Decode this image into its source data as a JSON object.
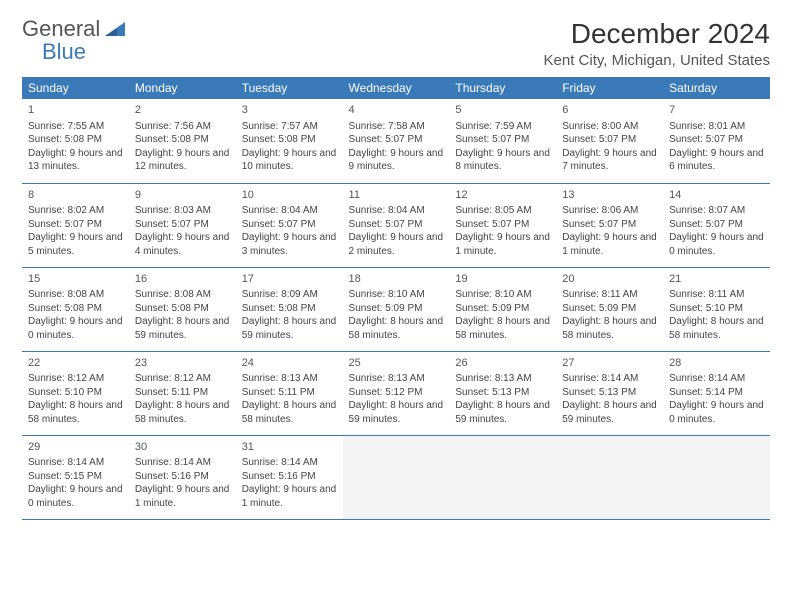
{
  "logo": {
    "word1": "General",
    "word2": "Blue"
  },
  "title": "December 2024",
  "location": "Kent City, Michigan, United States",
  "colors": {
    "header_bg": "#3a7ab8",
    "border": "#3a7ab8",
    "empty_bg": "#f3f3f3"
  },
  "weekdays": [
    "Sunday",
    "Monday",
    "Tuesday",
    "Wednesday",
    "Thursday",
    "Friday",
    "Saturday"
  ],
  "days": [
    {
      "n": "1",
      "sr": "7:55 AM",
      "ss": "5:08 PM",
      "dl": "9 hours and 13 minutes."
    },
    {
      "n": "2",
      "sr": "7:56 AM",
      "ss": "5:08 PM",
      "dl": "9 hours and 12 minutes."
    },
    {
      "n": "3",
      "sr": "7:57 AM",
      "ss": "5:08 PM",
      "dl": "9 hours and 10 minutes."
    },
    {
      "n": "4",
      "sr": "7:58 AM",
      "ss": "5:07 PM",
      "dl": "9 hours and 9 minutes."
    },
    {
      "n": "5",
      "sr": "7:59 AM",
      "ss": "5:07 PM",
      "dl": "9 hours and 8 minutes."
    },
    {
      "n": "6",
      "sr": "8:00 AM",
      "ss": "5:07 PM",
      "dl": "9 hours and 7 minutes."
    },
    {
      "n": "7",
      "sr": "8:01 AM",
      "ss": "5:07 PM",
      "dl": "9 hours and 6 minutes."
    },
    {
      "n": "8",
      "sr": "8:02 AM",
      "ss": "5:07 PM",
      "dl": "9 hours and 5 minutes."
    },
    {
      "n": "9",
      "sr": "8:03 AM",
      "ss": "5:07 PM",
      "dl": "9 hours and 4 minutes."
    },
    {
      "n": "10",
      "sr": "8:04 AM",
      "ss": "5:07 PM",
      "dl": "9 hours and 3 minutes."
    },
    {
      "n": "11",
      "sr": "8:04 AM",
      "ss": "5:07 PM",
      "dl": "9 hours and 2 minutes."
    },
    {
      "n": "12",
      "sr": "8:05 AM",
      "ss": "5:07 PM",
      "dl": "9 hours and 1 minute."
    },
    {
      "n": "13",
      "sr": "8:06 AM",
      "ss": "5:07 PM",
      "dl": "9 hours and 1 minute."
    },
    {
      "n": "14",
      "sr": "8:07 AM",
      "ss": "5:07 PM",
      "dl": "9 hours and 0 minutes."
    },
    {
      "n": "15",
      "sr": "8:08 AM",
      "ss": "5:08 PM",
      "dl": "9 hours and 0 minutes."
    },
    {
      "n": "16",
      "sr": "8:08 AM",
      "ss": "5:08 PM",
      "dl": "8 hours and 59 minutes."
    },
    {
      "n": "17",
      "sr": "8:09 AM",
      "ss": "5:08 PM",
      "dl": "8 hours and 59 minutes."
    },
    {
      "n": "18",
      "sr": "8:10 AM",
      "ss": "5:09 PM",
      "dl": "8 hours and 58 minutes."
    },
    {
      "n": "19",
      "sr": "8:10 AM",
      "ss": "5:09 PM",
      "dl": "8 hours and 58 minutes."
    },
    {
      "n": "20",
      "sr": "8:11 AM",
      "ss": "5:09 PM",
      "dl": "8 hours and 58 minutes."
    },
    {
      "n": "21",
      "sr": "8:11 AM",
      "ss": "5:10 PM",
      "dl": "8 hours and 58 minutes."
    },
    {
      "n": "22",
      "sr": "8:12 AM",
      "ss": "5:10 PM",
      "dl": "8 hours and 58 minutes."
    },
    {
      "n": "23",
      "sr": "8:12 AM",
      "ss": "5:11 PM",
      "dl": "8 hours and 58 minutes."
    },
    {
      "n": "24",
      "sr": "8:13 AM",
      "ss": "5:11 PM",
      "dl": "8 hours and 58 minutes."
    },
    {
      "n": "25",
      "sr": "8:13 AM",
      "ss": "5:12 PM",
      "dl": "8 hours and 59 minutes."
    },
    {
      "n": "26",
      "sr": "8:13 AM",
      "ss": "5:13 PM",
      "dl": "8 hours and 59 minutes."
    },
    {
      "n": "27",
      "sr": "8:14 AM",
      "ss": "5:13 PM",
      "dl": "8 hours and 59 minutes."
    },
    {
      "n": "28",
      "sr": "8:14 AM",
      "ss": "5:14 PM",
      "dl": "9 hours and 0 minutes."
    },
    {
      "n": "29",
      "sr": "8:14 AM",
      "ss": "5:15 PM",
      "dl": "9 hours and 0 minutes."
    },
    {
      "n": "30",
      "sr": "8:14 AM",
      "ss": "5:16 PM",
      "dl": "9 hours and 1 minute."
    },
    {
      "n": "31",
      "sr": "8:14 AM",
      "ss": "5:16 PM",
      "dl": "9 hours and 1 minute."
    }
  ],
  "labels": {
    "sunrise": "Sunrise:",
    "sunset": "Sunset:",
    "daylight": "Daylight:"
  }
}
